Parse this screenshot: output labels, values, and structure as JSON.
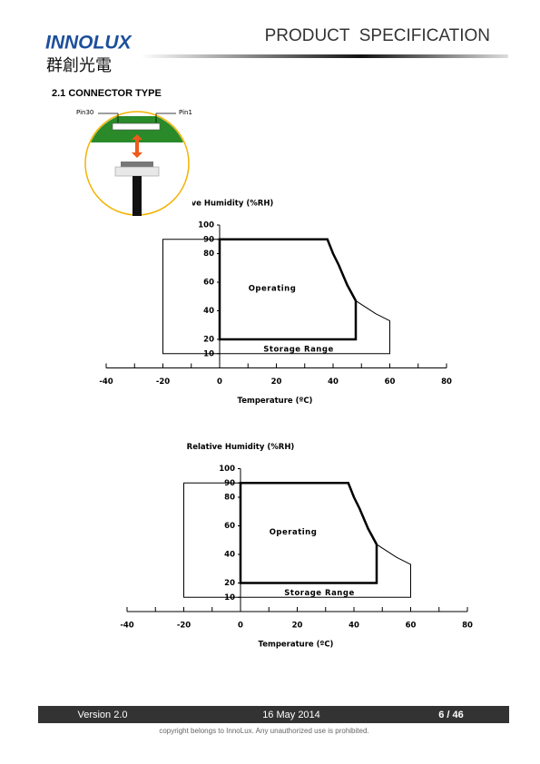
{
  "header": {
    "logo": "INNOLUX",
    "logo_cjk": "群創光電",
    "title": "PRODUCT  SPECIFICATION"
  },
  "section_title": "2.1 CONNECTOR TYPE",
  "connector": {
    "left_pin": "Pin30",
    "right_pin": "Pin1"
  },
  "chart_data": [
    {
      "type": "region",
      "ylabel": "Relative Humidity (%RH)",
      "xlabel": "Temperature (ºC)",
      "xlim": [
        -40,
        80
      ],
      "ylim": [
        0,
        100
      ],
      "xticks": [
        -40,
        -20,
        0,
        20,
        40,
        60,
        80
      ],
      "xminorticks": [
        -40,
        -30,
        -20,
        -10,
        0,
        10,
        20,
        30,
        40,
        50,
        60,
        70,
        80
      ],
      "yticks": [
        10,
        20,
        40,
        60,
        80,
        90,
        100
      ],
      "series": [
        {
          "name": "Storage Range",
          "color": "#000000",
          "line_width": 1,
          "x": [
            -20,
            -20,
            38,
            40,
            42,
            45,
            48,
            55,
            60,
            60
          ],
          "y": [
            10,
            90,
            90,
            80,
            72,
            58,
            47,
            38,
            33,
            10
          ]
        },
        {
          "name": "Operating",
          "color": "#000000",
          "line_width": 2.5,
          "x": [
            0,
            0,
            38,
            40,
            42,
            45,
            48,
            48
          ],
          "y": [
            20,
            90,
            90,
            80,
            72,
            58,
            47,
            20
          ]
        }
      ]
    },
    {
      "type": "region",
      "ylabel": "Relative Humidity (%RH)",
      "xlabel": "Temperature (ºC)",
      "xlim": [
        -40,
        80
      ],
      "ylim": [
        0,
        100
      ],
      "xticks": [
        -40,
        -20,
        0,
        20,
        40,
        60,
        80
      ],
      "xminorticks": [
        -40,
        -30,
        -20,
        -10,
        0,
        10,
        20,
        30,
        40,
        50,
        60,
        70,
        80
      ],
      "yticks": [
        10,
        20,
        40,
        60,
        80,
        90,
        100
      ],
      "series": [
        {
          "name": "Storage Range",
          "color": "#000000",
          "line_width": 1,
          "x": [
            -20,
            -20,
            38,
            40,
            42,
            45,
            48,
            55,
            60,
            60
          ],
          "y": [
            10,
            90,
            90,
            80,
            72,
            58,
            47,
            38,
            33,
            10
          ]
        },
        {
          "name": "Operating",
          "color": "#000000",
          "line_width": 2.5,
          "x": [
            0,
            0,
            38,
            40,
            42,
            45,
            48,
            48
          ],
          "y": [
            20,
            90,
            90,
            80,
            72,
            58,
            47,
            20
          ]
        }
      ]
    }
  ],
  "footer": {
    "version": "Version 2.0",
    "date": "16 May 2014",
    "page": "6 / 46",
    "copyright": "copyright belongs to InnoLux. Any unauthorized use is prohibited."
  }
}
